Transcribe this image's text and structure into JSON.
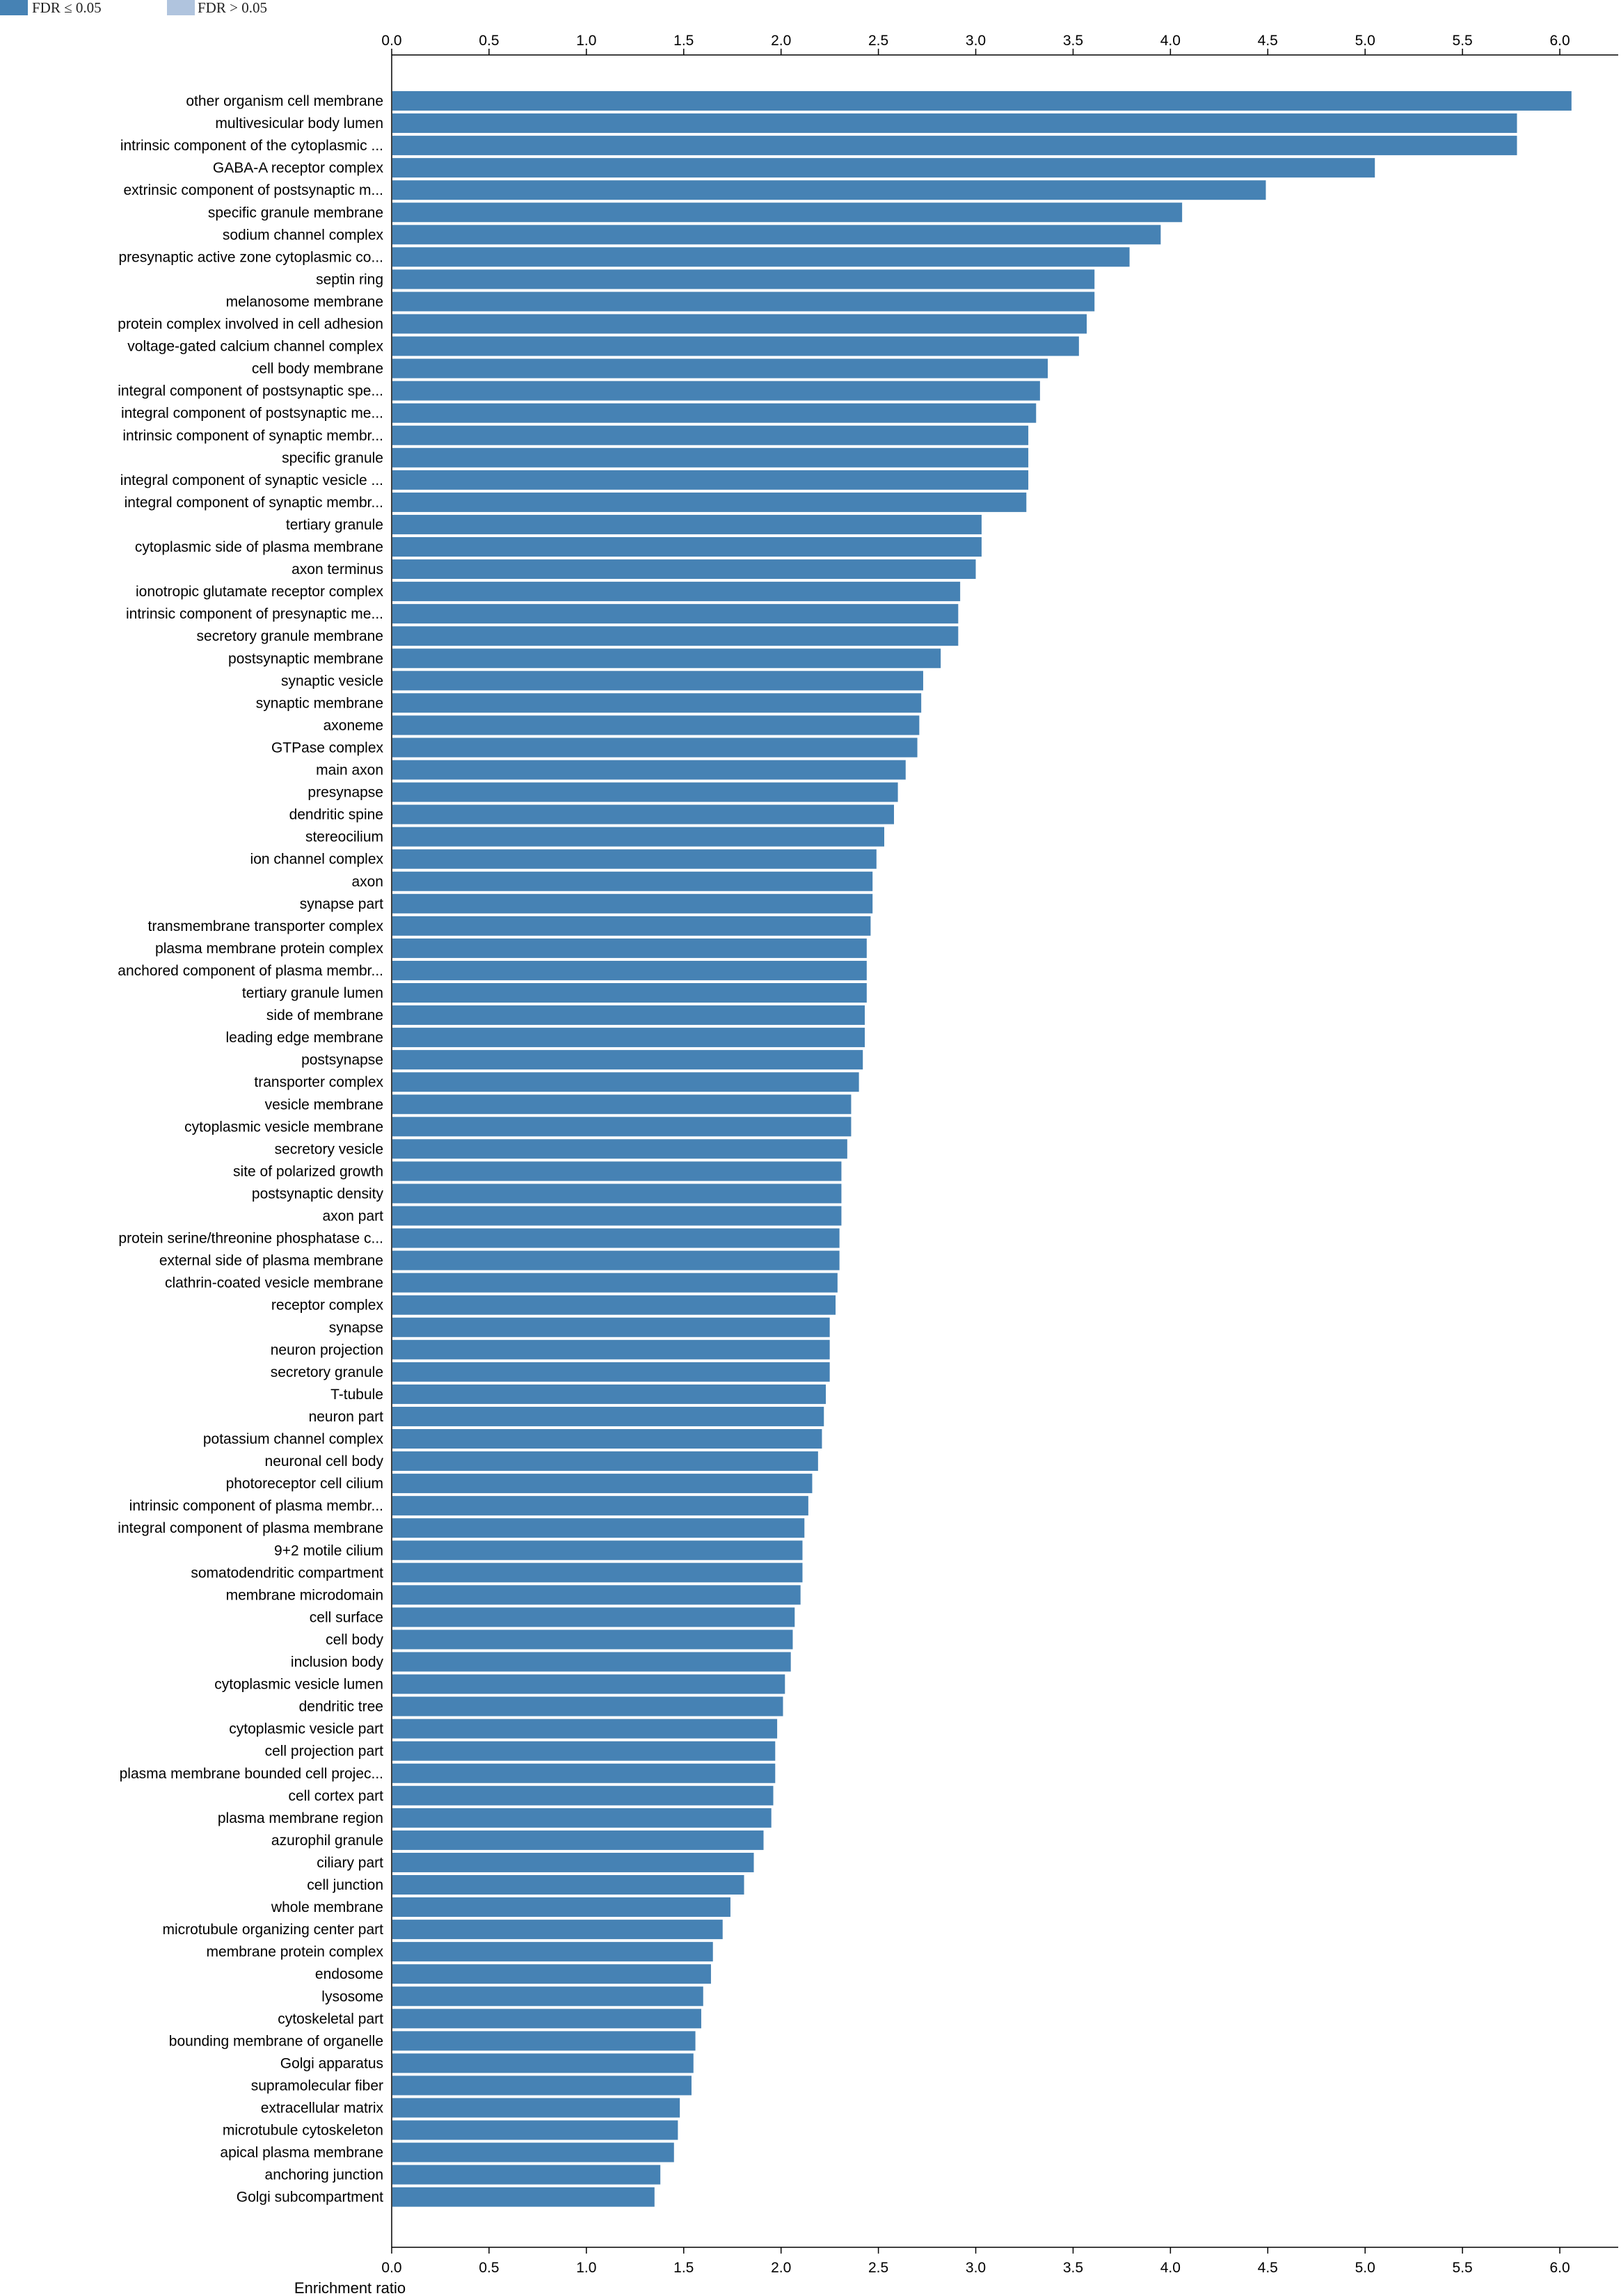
{
  "colors": {
    "significant": "#4682b4",
    "nonsignificant": "#b0c4de"
  },
  "legend": [
    {
      "label": "FDR ≤ 0.05",
      "color": "#4682b4"
    },
    {
      "label": "FDR > 0.05",
      "color": "#b0c4de"
    }
  ],
  "chart_data": {
    "type": "bar",
    "orientation": "horizontal",
    "xlabel": "Enrichment ratio",
    "xlim": [
      0,
      6.3
    ],
    "xticks": [
      "0.0",
      "0.5",
      "1.0",
      "1.5",
      "2.0",
      "2.5",
      "3.0",
      "3.5",
      "4.0",
      "4.5",
      "5.0",
      "5.5",
      "6.0"
    ],
    "categories": [
      "other organism cell membrane",
      "multivesicular body lumen",
      "intrinsic component of the cytoplasmic ...",
      "GABA-A receptor complex",
      "extrinsic component of postsynaptic m...",
      "specific granule membrane",
      "sodium channel complex",
      "presynaptic active zone cytoplasmic co...",
      "septin ring",
      "melanosome membrane",
      "protein complex involved in cell adhesion",
      "voltage-gated calcium channel complex",
      "cell body membrane",
      "integral component of postsynaptic spe...",
      "integral component of postsynaptic me...",
      "intrinsic component of synaptic membr...",
      "specific granule",
      "integral component of synaptic vesicle ...",
      "integral component of synaptic membr...",
      "tertiary granule",
      "cytoplasmic side of plasma membrane",
      "axon terminus",
      "ionotropic glutamate receptor complex",
      "intrinsic component of presynaptic me...",
      "secretory granule membrane",
      "postsynaptic membrane",
      "synaptic vesicle",
      "synaptic membrane",
      "axoneme",
      "GTPase complex",
      "main axon",
      "presynapse",
      "dendritic spine",
      "stereocilium",
      "ion channel complex",
      "axon",
      "synapse part",
      "transmembrane transporter complex",
      "plasma membrane protein complex",
      "anchored component of plasma membr...",
      "tertiary granule lumen",
      "side of membrane",
      "leading edge membrane",
      "postsynapse",
      "transporter complex",
      "vesicle membrane",
      "cytoplasmic vesicle membrane",
      "secretory vesicle",
      "site of polarized growth",
      "postsynaptic density",
      "axon part",
      "protein serine/threonine phosphatase c...",
      "external side of plasma membrane",
      "clathrin-coated vesicle membrane",
      "receptor complex",
      "synapse",
      "neuron projection",
      "secretory granule",
      "T-tubule",
      "neuron part",
      "potassium channel complex",
      "neuronal cell body",
      "photoreceptor cell cilium",
      "intrinsic component of plasma membr...",
      "integral component of plasma membrane",
      "9+2 motile cilium",
      "somatodendritic compartment",
      "membrane microdomain",
      "cell surface",
      "cell body",
      "inclusion body",
      "cytoplasmic vesicle lumen",
      "dendritic tree",
      "cytoplasmic vesicle part",
      "cell projection part",
      "plasma membrane bounded cell projec...",
      "cell cortex part",
      "plasma membrane region",
      "azurophil granule",
      "ciliary part",
      "cell junction",
      "whole membrane",
      "microtubule organizing center part",
      "membrane protein complex",
      "endosome",
      "lysosome",
      "cytoskeletal part",
      "bounding membrane of organelle",
      "Golgi apparatus",
      "supramolecular fiber",
      "extracellular matrix",
      "microtubule cytoskeleton",
      "apical plasma membrane",
      "anchoring junction",
      "Golgi subcompartment"
    ],
    "values": [
      6.06,
      5.78,
      5.78,
      5.05,
      4.49,
      4.06,
      3.95,
      3.79,
      3.61,
      3.61,
      3.57,
      3.53,
      3.37,
      3.33,
      3.31,
      3.27,
      3.27,
      3.27,
      3.26,
      3.03,
      3.03,
      3.0,
      2.92,
      2.91,
      2.91,
      2.82,
      2.73,
      2.72,
      2.71,
      2.7,
      2.64,
      2.6,
      2.58,
      2.53,
      2.49,
      2.47,
      2.47,
      2.46,
      2.44,
      2.44,
      2.44,
      2.43,
      2.43,
      2.42,
      2.4,
      2.36,
      2.36,
      2.34,
      2.31,
      2.31,
      2.31,
      2.3,
      2.3,
      2.29,
      2.28,
      2.25,
      2.25,
      2.25,
      2.23,
      2.22,
      2.21,
      2.19,
      2.16,
      2.14,
      2.12,
      2.11,
      2.11,
      2.1,
      2.07,
      2.06,
      2.05,
      2.02,
      2.01,
      1.98,
      1.97,
      1.97,
      1.96,
      1.95,
      1.91,
      1.86,
      1.81,
      1.74,
      1.7,
      1.65,
      1.64,
      1.6,
      1.59,
      1.56,
      1.55,
      1.54,
      1.48,
      1.47,
      1.45,
      1.38,
      1.35
    ],
    "significance": "all FDR ≤ 0.05"
  }
}
